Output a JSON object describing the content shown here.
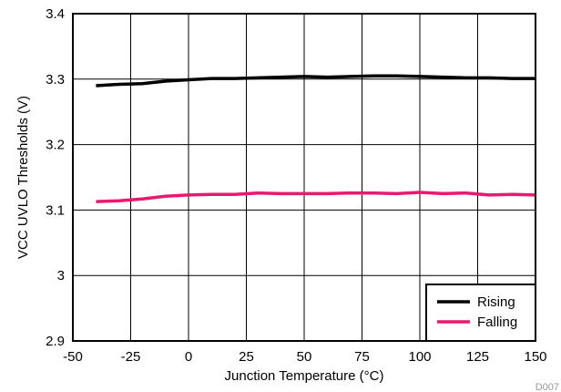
{
  "chart_data": {
    "type": "line",
    "title": "",
    "xlabel": "Junction Temperature (°C)",
    "ylabel": "VCC UVLO Thresholds (V)",
    "xlim": [
      -50,
      150
    ],
    "ylim": [
      2.9,
      3.4
    ],
    "xticks": [
      -50,
      -25,
      0,
      25,
      50,
      75,
      100,
      125,
      150
    ],
    "xtick_labels": [
      "-50",
      "-25",
      "0",
      "25",
      "50",
      "75",
      "100",
      "125",
      "150"
    ],
    "yticks": [
      2.9,
      3.0,
      3.1,
      3.2,
      3.3,
      3.4
    ],
    "ytick_labels": [
      "2.9",
      "3",
      "3.1",
      "3.2",
      "3.3",
      "3.4"
    ],
    "grid": true,
    "legend_position": "bottom-right",
    "footnote": "D007",
    "series": [
      {
        "name": "Rising",
        "color": "#000000",
        "x": [
          -40,
          -30,
          -20,
          -10,
          0,
          10,
          20,
          30,
          40,
          50,
          60,
          70,
          80,
          90,
          100,
          110,
          120,
          130,
          140,
          150
        ],
        "y": [
          3.29,
          3.292,
          3.293,
          3.297,
          3.299,
          3.301,
          3.301,
          3.302,
          3.303,
          3.304,
          3.303,
          3.304,
          3.305,
          3.305,
          3.304,
          3.303,
          3.302,
          3.302,
          3.301,
          3.301
        ]
      },
      {
        "name": "Falling",
        "color": "#e8196f",
        "x": [
          -40,
          -30,
          -20,
          -10,
          0,
          10,
          20,
          30,
          40,
          50,
          60,
          70,
          80,
          90,
          100,
          110,
          120,
          130,
          140,
          150
        ],
        "y": [
          3.113,
          3.114,
          3.117,
          3.121,
          3.123,
          3.124,
          3.124,
          3.126,
          3.125,
          3.125,
          3.125,
          3.126,
          3.126,
          3.125,
          3.127,
          3.125,
          3.126,
          3.123,
          3.124,
          3.123
        ]
      }
    ]
  }
}
